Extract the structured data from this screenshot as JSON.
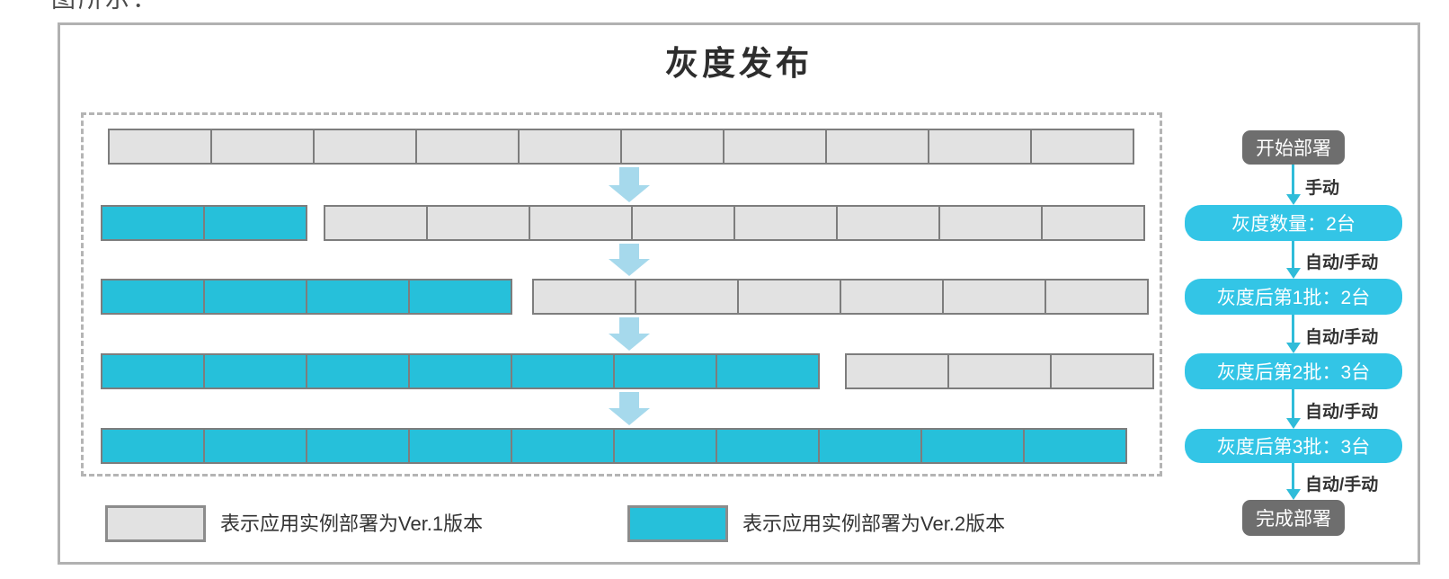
{
  "context": {
    "leading_text": "图所示："
  },
  "panel": {
    "title": "灰度发布"
  },
  "deployment_rows": [
    {
      "stage": "initial",
      "groups": [
        {
          "version": "Ver.1",
          "color": "gray",
          "count": 10
        }
      ]
    },
    {
      "stage": "canary",
      "groups": [
        {
          "version": "Ver.2",
          "color": "cyan",
          "count": 2
        },
        {
          "version": "Ver.1",
          "color": "gray",
          "count": 8
        }
      ]
    },
    {
      "stage": "after-batch-1",
      "groups": [
        {
          "version": "Ver.2",
          "color": "cyan",
          "count": 4
        },
        {
          "version": "Ver.1",
          "color": "gray",
          "count": 6
        }
      ]
    },
    {
      "stage": "after-batch-2",
      "groups": [
        {
          "version": "Ver.2",
          "color": "cyan",
          "count": 7
        },
        {
          "version": "Ver.1",
          "color": "gray",
          "count": 3
        }
      ]
    },
    {
      "stage": "after-batch-3",
      "groups": [
        {
          "version": "Ver.2",
          "color": "cyan",
          "count": 10
        }
      ]
    }
  ],
  "flow": {
    "nodes": [
      {
        "kind": "terminal",
        "label": "开始部署"
      },
      {
        "kind": "step",
        "label": "灰度数量：2台"
      },
      {
        "kind": "step",
        "label": "灰度后第1批：2台"
      },
      {
        "kind": "step",
        "label": "灰度后第2批：3台"
      },
      {
        "kind": "step",
        "label": "灰度后第3批：3台"
      },
      {
        "kind": "terminal",
        "label": "完成部署"
      }
    ],
    "edge_labels": [
      "手动",
      "自动/手动",
      "自动/手动",
      "自动/手动",
      "自动/手动"
    ]
  },
  "legend": [
    {
      "color": "gray",
      "label": "表示应用实例部署为Ver.1版本"
    },
    {
      "color": "cyan",
      "label": "表示应用实例部署为Ver.2版本"
    }
  ],
  "colors": {
    "ver1_fill": "#e2e2e2",
    "ver2_fill": "#26c0da",
    "box_border": "#7d7d7d",
    "flow_step_fill": "#33c5e6",
    "flow_terminal_fill": "#6e6e6e",
    "big_arrow": "#a6d9ec",
    "flow_arrow": "#2fbcd9",
    "dashed_border": "#b4b4b4",
    "panel_border": "#b1b1b1"
  }
}
